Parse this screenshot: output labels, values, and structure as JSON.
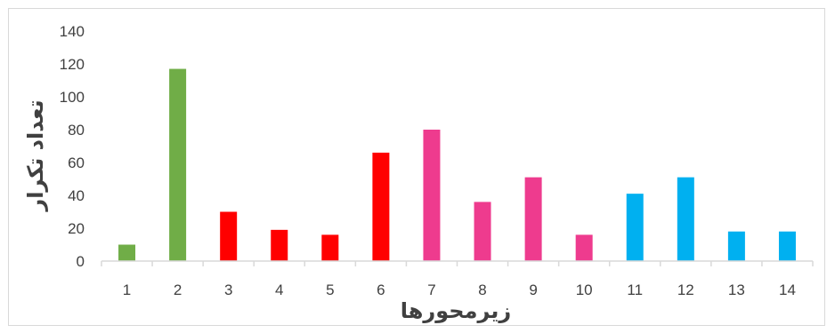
{
  "chart_data": {
    "type": "bar",
    "title": "",
    "xlabel": "زیرمحورها",
    "ylabel": "تعداد تکرار",
    "categories": [
      "1",
      "2",
      "3",
      "4",
      "5",
      "6",
      "7",
      "8",
      "9",
      "10",
      "11",
      "12",
      "13",
      "14"
    ],
    "values": [
      10,
      117,
      30,
      19,
      16,
      66,
      80,
      36,
      51,
      16,
      41,
      51,
      18,
      18
    ],
    "colors": [
      "#70ad47",
      "#70ad47",
      "#ff0000",
      "#ff0000",
      "#ff0000",
      "#ff0000",
      "#ee3b8e",
      "#ee3b8e",
      "#ee3b8e",
      "#ee3b8e",
      "#00b0f0",
      "#00b0f0",
      "#00b0f0",
      "#00b0f0"
    ],
    "ylim": [
      0,
      140
    ],
    "yticks": [
      0,
      20,
      40,
      60,
      80,
      100,
      120,
      140
    ],
    "grid": false,
    "legend": "none"
  }
}
